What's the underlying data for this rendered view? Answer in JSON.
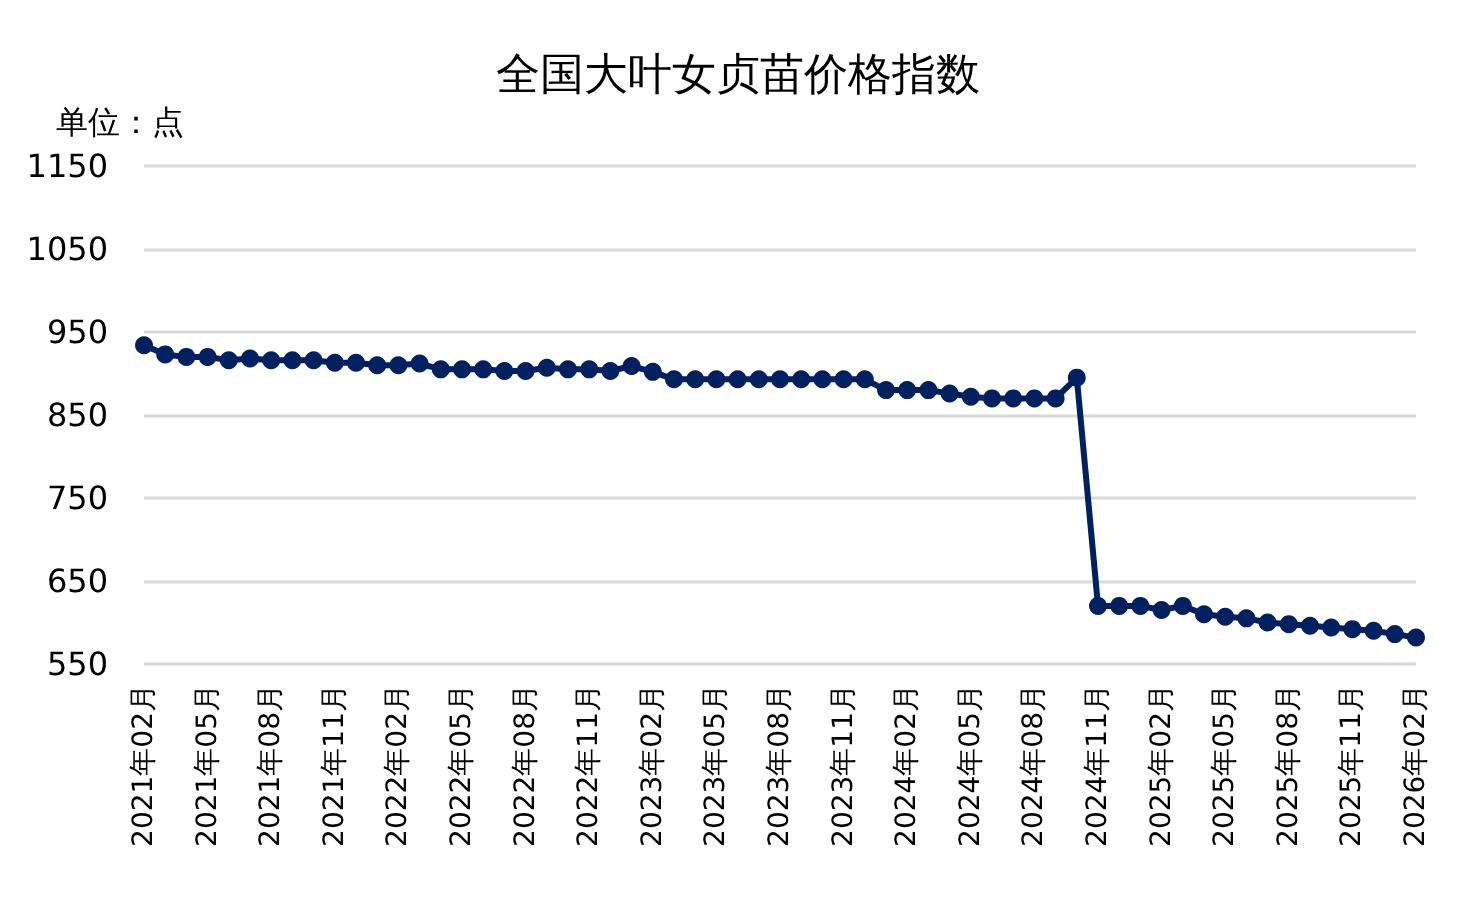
{
  "chart_data": {
    "type": "line",
    "title": "全国大叶女贞苗价格指数",
    "ylabel": "单位：点",
    "categories": [
      "2021年02月",
      null,
      null,
      "2021年05月",
      null,
      null,
      "2021年08月",
      null,
      null,
      "2021年11月",
      null,
      null,
      "2022年02月",
      null,
      null,
      "2022年05月",
      null,
      null,
      "2022年08月",
      null,
      null,
      "2022年11月",
      null,
      null,
      "2023年02月",
      null,
      null,
      "2023年05月",
      null,
      null,
      "2023年08月",
      null,
      null,
      "2023年11月",
      null,
      null,
      "2024年02月",
      null,
      null,
      "2024年05月",
      null,
      null,
      "2024年08月",
      null,
      null,
      "2024年11月",
      null,
      null,
      "2025年02月",
      null,
      null,
      "2025年05月",
      null,
      null,
      "2025年08月",
      null,
      null,
      "2025年11月",
      null,
      null,
      "2026年02月"
    ],
    "series": [
      {
        "color": "#002060",
        "values": [
          934,
          923,
          920,
          920,
          916,
          918,
          916,
          916,
          916,
          913,
          913,
          910,
          910,
          912,
          905,
          905,
          905,
          903,
          903,
          907,
          905,
          905,
          903,
          909,
          902,
          893,
          893,
          893,
          893,
          893,
          893,
          893,
          893,
          893,
          893,
          880,
          880,
          880,
          876,
          872,
          870,
          870,
          870,
          870,
          895,
          620,
          620,
          620,
          615,
          620,
          610,
          607,
          605,
          600,
          598,
          596,
          594,
          592,
          590,
          586,
          582
        ]
      }
    ],
    "ylim": [
      550,
      1150
    ],
    "yticks": [
      550,
      650,
      750,
      850,
      950,
      1050,
      1150
    ],
    "grid": "y",
    "marker": "circle",
    "line_style": "solid"
  }
}
